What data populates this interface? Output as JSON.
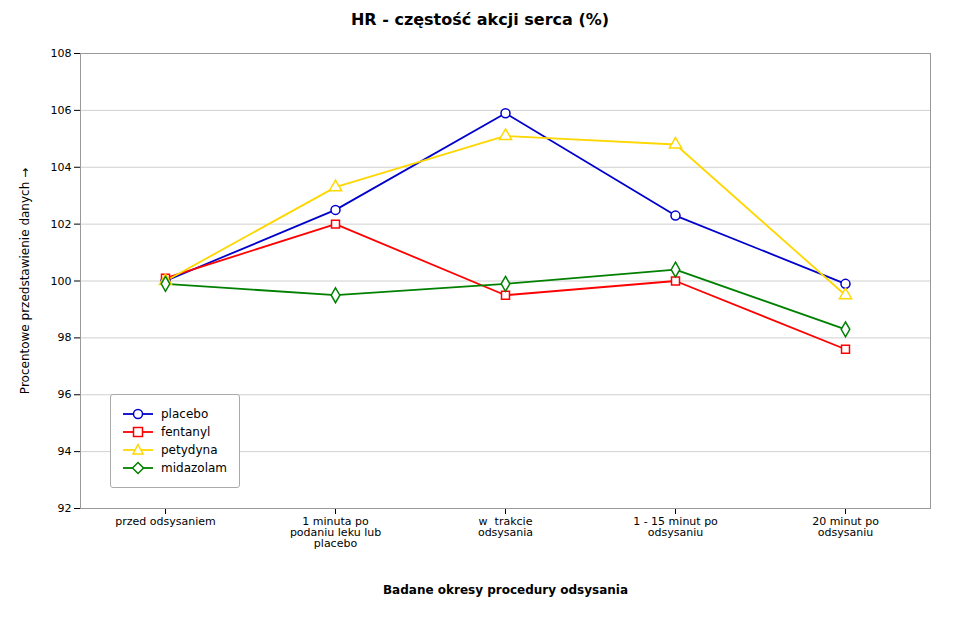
{
  "chart_data": {
    "type": "line",
    "title": "HR - częstość akcji serca (%)",
    "xlabel": "Badane okresy procedury odsysania",
    "ylabel": "Procentowe przedstawienie danych",
    "categories": [
      "przed odsysaniem",
      "1 minuta po\npodaniu leku lub\nplacebo",
      "w  trakcie\nodsysania",
      "1 - 15 minut po\nodsysaniu",
      "20 minut po\nodsysaniu"
    ],
    "series": [
      {
        "name": "placebo",
        "color": "#0000CC",
        "marker": "circle",
        "values": [
          100.0,
          102.5,
          105.9,
          102.3,
          99.9
        ]
      },
      {
        "name": "fentanyl",
        "color": "#FF0000",
        "marker": "square",
        "values": [
          100.1,
          102.0,
          99.5,
          100.0,
          97.6
        ]
      },
      {
        "name": "petydyna",
        "color": "#FFD700",
        "marker": "triangle",
        "values": [
          100.0,
          103.3,
          105.1,
          104.8,
          99.5
        ]
      },
      {
        "name": "midazolam",
        "color": "#008000",
        "marker": "diamond",
        "values": [
          99.9,
          99.5,
          99.9,
          100.4,
          98.3
        ]
      }
    ],
    "ylim": [
      92,
      108
    ],
    "yticks": [
      92,
      94,
      96,
      98,
      100,
      102,
      104,
      106,
      108
    ],
    "grid": true,
    "legend": "lower left"
  }
}
